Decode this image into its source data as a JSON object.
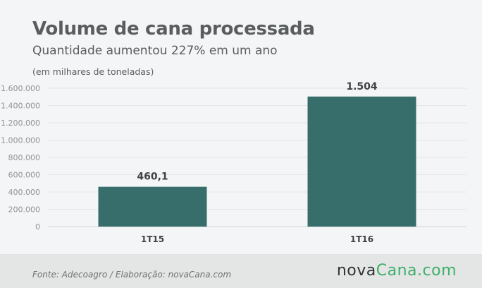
{
  "header": {
    "title": "Volume de cana processada",
    "subtitle": "Quantidade aumentou 227% em um ano",
    "unit_note": "(em milhares de toneladas)"
  },
  "footer": {
    "source": "Fonte: Adecoagro / Elaboração: novaCana.com",
    "logo_main": "nova",
    "logo_brand": "Cana",
    "logo_tld": ".com"
  },
  "colors": {
    "bar": "#376e6b",
    "logo_accent": "#3fae6a"
  },
  "chart_data": {
    "type": "bar",
    "title": "Volume de cana processada",
    "subtitle": "Quantidade aumentou 227% em um ano",
    "ylabel": "(em milhares de toneladas)",
    "categories": [
      "1T15",
      "1T16"
    ],
    "values": [
      460.1,
      1504
    ],
    "data_labels": [
      "460,1",
      "1.504"
    ],
    "ylim": [
      0,
      1600000
    ],
    "value_scale_for_axis": 1000,
    "yticks": [
      0,
      200000,
      400000,
      600000,
      800000,
      1000000,
      1200000,
      1400000,
      1600000
    ],
    "ytick_labels": [
      "0",
      "200.000",
      "400.000",
      "600.000",
      "800.000",
      "1.000.000",
      "1.200.000",
      "1.400.000",
      "1.600.000"
    ],
    "grid": true,
    "legend": "none"
  }
}
